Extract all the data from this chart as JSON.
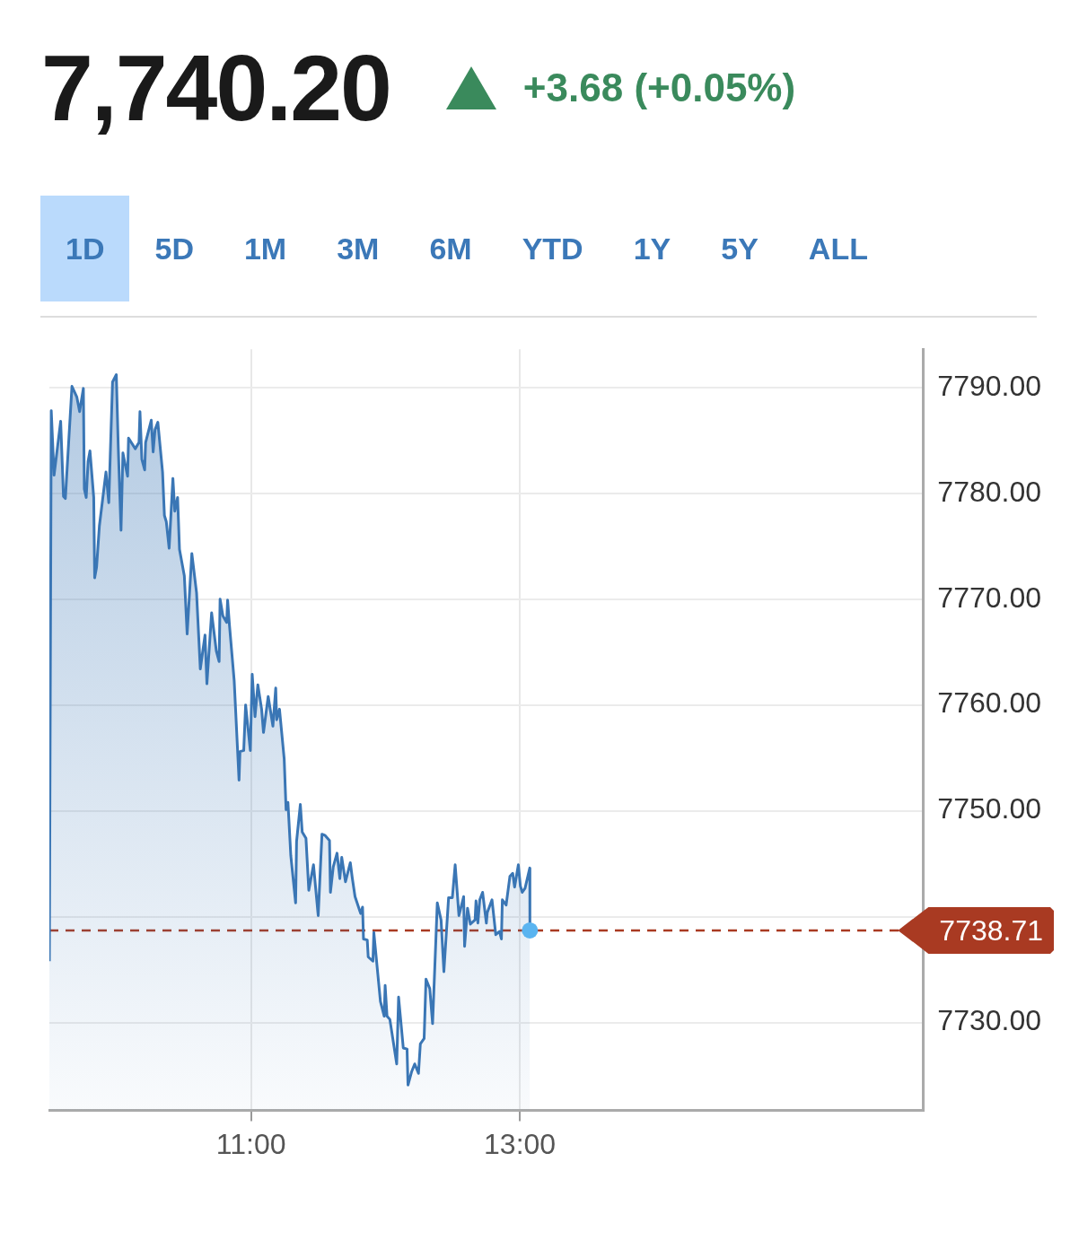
{
  "chart_data": {
    "type": "area",
    "title": "7,740.20",
    "subtitle": "+3.68 (+0.05%)",
    "annotations": [
      "1D",
      "5D",
      "1M",
      "3M",
      "6M",
      "YTD",
      "1Y",
      "5Y",
      "ALL"
    ],
    "series": [
      {
        "color": "#3a76b5",
        "x": [
          9.5,
          9.514,
          9.535,
          9.584,
          9.605,
          9.619,
          9.668,
          9.704,
          9.725,
          9.753,
          9.76,
          9.774,
          9.788,
          9.802,
          9.83,
          9.837,
          9.851,
          9.872,
          9.921,
          9.942,
          9.97,
          9.998,
          10.012,
          10.033,
          10.047,
          10.082,
          10.089,
          10.139,
          10.167,
          10.174,
          10.188,
          10.209,
          10.216,
          10.258,
          10.272,
          10.286,
          10.307,
          10.342,
          10.356,
          10.37,
          10.391,
          10.419,
          10.433,
          10.454,
          10.468,
          10.504,
          10.525,
          10.56,
          10.595,
          10.623,
          10.658,
          10.672,
          10.707,
          10.742,
          10.763,
          10.77,
          10.791,
          10.819,
          10.826,
          10.84,
          10.875,
          10.911,
          10.918,
          10.946,
          10.96,
          10.995,
          11.009,
          11.03,
          11.051,
          11.079,
          11.093,
          11.128,
          11.163,
          11.184,
          11.191,
          11.212,
          11.247,
          11.261,
          11.275,
          11.296,
          11.332,
          11.339,
          11.367,
          11.381,
          11.409,
          11.43,
          11.465,
          11.5,
          11.528,
          11.549,
          11.584,
          11.591,
          11.612,
          11.64,
          11.661,
          11.675,
          11.703,
          11.739,
          11.753,
          11.774,
          11.816,
          11.83,
          11.837,
          11.865,
          11.872,
          11.907,
          11.914,
          11.963,
          11.991,
          11.998,
          12.012,
          12.033,
          12.084,
          12.098,
          12.133,
          12.161,
          12.168,
          12.196,
          12.218,
          12.246,
          12.26,
          12.288,
          12.302,
          12.33,
          12.351,
          12.386,
          12.414,
          12.435,
          12.47,
          12.498,
          12.519,
          12.547,
          12.582,
          12.589,
          12.611,
          12.632,
          12.667,
          12.674,
          12.688,
          12.702,
          12.723,
          12.751,
          12.758,
          12.793,
          12.821,
          12.849,
          12.863,
          12.87,
          12.898,
          12.926,
          12.947,
          12.961,
          12.989,
          13.004,
          13.018,
          13.039,
          13.074,
          13.075
        ],
        "values": [
          7735.8,
          7787.8,
          7781.7,
          7786.8,
          7779.7,
          7779.5,
          7790.1,
          7789.1,
          7787.7,
          7789.9,
          7780.4,
          7779.6,
          7783.0,
          7784.0,
          7779.6,
          7772.0,
          7773.0,
          7776.9,
          7782.0,
          7779.1,
          7790.5,
          7791.2,
          7784.6,
          7776.5,
          7783.8,
          7781.6,
          7785.2,
          7784.2,
          7784.8,
          7787.7,
          7783.2,
          7782.2,
          7784.8,
          7786.9,
          7783.9,
          7786.0,
          7786.7,
          7782.0,
          7777.9,
          7777.3,
          7774.8,
          7781.4,
          7778.3,
          7779.6,
          7774.7,
          7772.2,
          7766.7,
          7774.3,
          7770.6,
          7763.4,
          7766.6,
          7762.0,
          7768.7,
          7765.1,
          7764.1,
          7770.0,
          7768.4,
          7767.8,
          7769.9,
          7767.5,
          7762.3,
          7752.9,
          7755.6,
          7755.7,
          7760.0,
          7755.7,
          7762.9,
          7758.9,
          7761.9,
          7759.6,
          7757.4,
          7760.8,
          7758.0,
          7761.6,
          7758.6,
          7759.6,
          7754.9,
          7750.1,
          7750.8,
          7745.8,
          7741.3,
          7747.1,
          7750.6,
          7748.0,
          7747.4,
          7742.5,
          7744.9,
          7740.1,
          7747.8,
          7747.7,
          7747.2,
          7742.3,
          7744.7,
          7746.0,
          7743.6,
          7745.6,
          7743.3,
          7745.1,
          7743.7,
          7741.9,
          7740.3,
          7740.9,
          7737.9,
          7737.8,
          7736.2,
          7735.8,
          7738.5,
          7732.0,
          7730.6,
          7733.5,
          7730.6,
          7730.3,
          7726.1,
          7732.4,
          7727.6,
          7727.5,
          7724.1,
          7725.4,
          7726.1,
          7725.2,
          7728.0,
          7728.5,
          7734.1,
          7733.2,
          7729.9,
          7741.3,
          7739.7,
          7734.8,
          7741.8,
          7741.8,
          7744.9,
          7740.1,
          7741.9,
          7737.2,
          7740.8,
          7739.3,
          7739.7,
          7741.5,
          7739.4,
          7741.6,
          7742.3,
          7739.4,
          7740.4,
          7741.6,
          7738.3,
          7738.6,
          7737.9,
          7741.6,
          7741.1,
          7743.8,
          7744.1,
          7742.8,
          7744.9,
          7742.9,
          7742.3,
          7742.7,
          7744.6,
          7738.71
        ]
      }
    ],
    "xlim": [
      9.5,
      16
    ],
    "xticks": [
      {
        "value": 11,
        "label": "11:00"
      },
      {
        "value": 13,
        "label": "13:00"
      }
    ],
    "ylim": [
      7721.7,
      7793.6
    ],
    "yticks": [
      {
        "value": 7730,
        "label": "7730.00"
      },
      {
        "value": 7740,
        "label": null
      },
      {
        "value": 7750,
        "label": "7750.00"
      },
      {
        "value": 7760,
        "label": "7760.00"
      },
      {
        "value": 7770,
        "label": "7770.00"
      },
      {
        "value": 7780,
        "label": "7780.00"
      },
      {
        "value": 7790,
        "label": "7790.00"
      }
    ],
    "ref_lines": [
      {
        "axis": "y",
        "value": 7738.71,
        "label": "7738.71",
        "color": "#a93a22",
        "line_style": "dashed"
      }
    ],
    "grid": true,
    "legend": false,
    "marker": "none",
    "line_style": "solid"
  }
}
